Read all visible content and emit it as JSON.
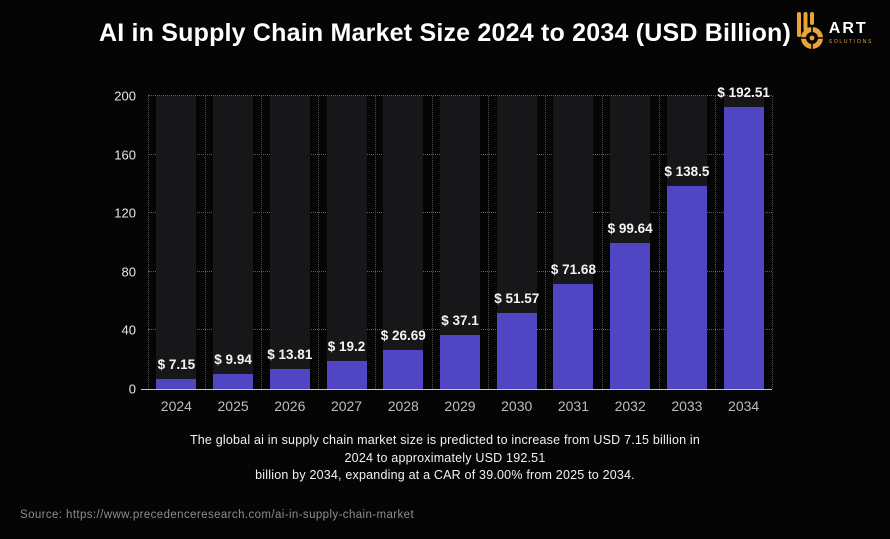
{
  "title": "AI in Supply Chain Market Size 2024 to 2034 (USD Billion)",
  "brand": {
    "name": "ART",
    "subtitle": "SOLUTIONS",
    "icon": "b-wheel-logo-icon",
    "accent_color": "#e8a33d"
  },
  "chart_data": {
    "type": "bar",
    "title": "AI in Supply Chain Market Size 2024 to 2034 (USD Billion)",
    "categories": [
      "2024",
      "2025",
      "2026",
      "2027",
      "2028",
      "2029",
      "2030",
      "2031",
      "2032",
      "2033",
      "2034"
    ],
    "values": [
      7.15,
      9.94,
      13.81,
      19.2,
      26.69,
      37.1,
      51.57,
      71.68,
      99.64,
      138.5,
      192.51
    ],
    "bar_labels": [
      "$ 7.15",
      "$ 9.94",
      "$ 13.81",
      "$ 19.2",
      "$ 26.69",
      "$ 37.1",
      "$ 51.57",
      "$ 71.68",
      "$ 99.64",
      "$ 138.5",
      "$ 192.51"
    ],
    "xlabel": "",
    "ylabel": "",
    "ylim": [
      0,
      200
    ],
    "yticks": [
      0,
      40,
      80,
      120,
      160,
      200
    ],
    "grid": true,
    "legend_position": "none",
    "colors": {
      "bar": "#5046c3",
      "track": "#17171a",
      "grid_dots": "#5f5f5f",
      "axis_line": "#c9c9c9",
      "background": "#050505"
    }
  },
  "caption": {
    "lines": [
      "The global ai in supply chain market size is predicted to increase from USD 7.15 billion in",
      "2024 to approximately USD 192.51",
      "billion by 2034, expanding at a CAR of 39.00% from 2025 to 2034."
    ]
  },
  "source": "Source: https://www.precedenceresearch.com/ai-in-supply-chain-market"
}
